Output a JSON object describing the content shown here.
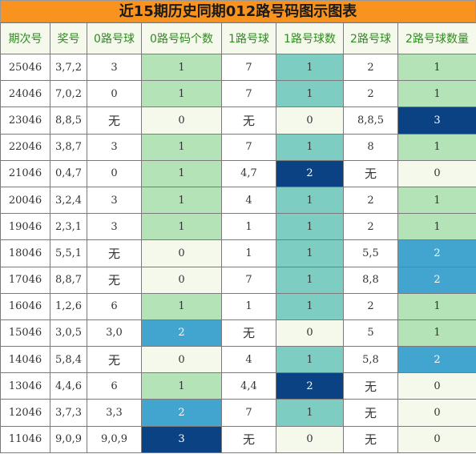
{
  "title": "近15期历史同期012路号码图示图表",
  "headers": [
    "期次号",
    "奖号",
    "0路号球",
    "0路号码个数",
    "1路号球",
    "1路号球数",
    "2路号球",
    "2路号球数量"
  ],
  "legend_colors": {
    "white": "#ffffff",
    "pale": "#f4f9ec",
    "green": "#b5e3b8",
    "teal": "#7ecdc3",
    "blue": "#41a5cf",
    "navy": "#0b4284",
    "title_bg": "#f7931e",
    "header_text": "#2e8b1e"
  },
  "rows": [
    {
      "period": "25046",
      "draw": "3,7,2",
      "r0": "3",
      "c0": "1",
      "r1": "7",
      "c1": "1",
      "r2": "2",
      "c2": "1"
    },
    {
      "period": "24046",
      "draw": "7,0,2",
      "r0": "0",
      "c0": "1",
      "r1": "7",
      "c1": "1",
      "r2": "2",
      "c2": "1"
    },
    {
      "period": "23046",
      "draw": "8,8,5",
      "r0": "无",
      "c0": "0",
      "r1": "无",
      "c1": "0",
      "r2": "8,8,5",
      "c2": "3"
    },
    {
      "period": "22046",
      "draw": "3,8,7",
      "r0": "3",
      "c0": "1",
      "r1": "7",
      "c1": "1",
      "r2": "8",
      "c2": "1"
    },
    {
      "period": "21046",
      "draw": "0,4,7",
      "r0": "0",
      "c0": "1",
      "r1": "4,7",
      "c1": "2",
      "r2": "无",
      "c2": "0"
    },
    {
      "period": "20046",
      "draw": "3,2,4",
      "r0": "3",
      "c0": "1",
      "r1": "4",
      "c1": "1",
      "r2": "2",
      "c2": "1"
    },
    {
      "period": "19046",
      "draw": "2,3,1",
      "r0": "3",
      "c0": "1",
      "r1": "1",
      "c1": "1",
      "r2": "2",
      "c2": "1"
    },
    {
      "period": "18046",
      "draw": "5,5,1",
      "r0": "无",
      "c0": "0",
      "r1": "1",
      "c1": "1",
      "r2": "5,5",
      "c2": "2"
    },
    {
      "period": "17046",
      "draw": "8,8,7",
      "r0": "无",
      "c0": "0",
      "r1": "7",
      "c1": "1",
      "r2": "8,8",
      "c2": "2"
    },
    {
      "period": "16046",
      "draw": "1,2,6",
      "r0": "6",
      "c0": "1",
      "r1": "1",
      "c1": "1",
      "r2": "2",
      "c2": "1"
    },
    {
      "period": "15046",
      "draw": "3,0,5",
      "r0": "3,0",
      "c0": "2",
      "r1": "无",
      "c1": "0",
      "r2": "5",
      "c2": "1"
    },
    {
      "period": "14046",
      "draw": "5,8,4",
      "r0": "无",
      "c0": "0",
      "r1": "4",
      "c1": "1",
      "r2": "5,8",
      "c2": "2"
    },
    {
      "period": "13046",
      "draw": "4,4,6",
      "r0": "6",
      "c0": "1",
      "r1": "4,4",
      "c1": "2",
      "r2": "无",
      "c2": "0"
    },
    {
      "period": "12046",
      "draw": "3,7,3",
      "r0": "3,3",
      "c0": "2",
      "r1": "7",
      "c1": "1",
      "r2": "无",
      "c2": "0"
    },
    {
      "period": "11046",
      "draw": "9,0,9",
      "r0": "9,0,9",
      "c0": "3",
      "r1": "无",
      "c1": "0",
      "r2": "无",
      "c2": "0"
    }
  ]
}
